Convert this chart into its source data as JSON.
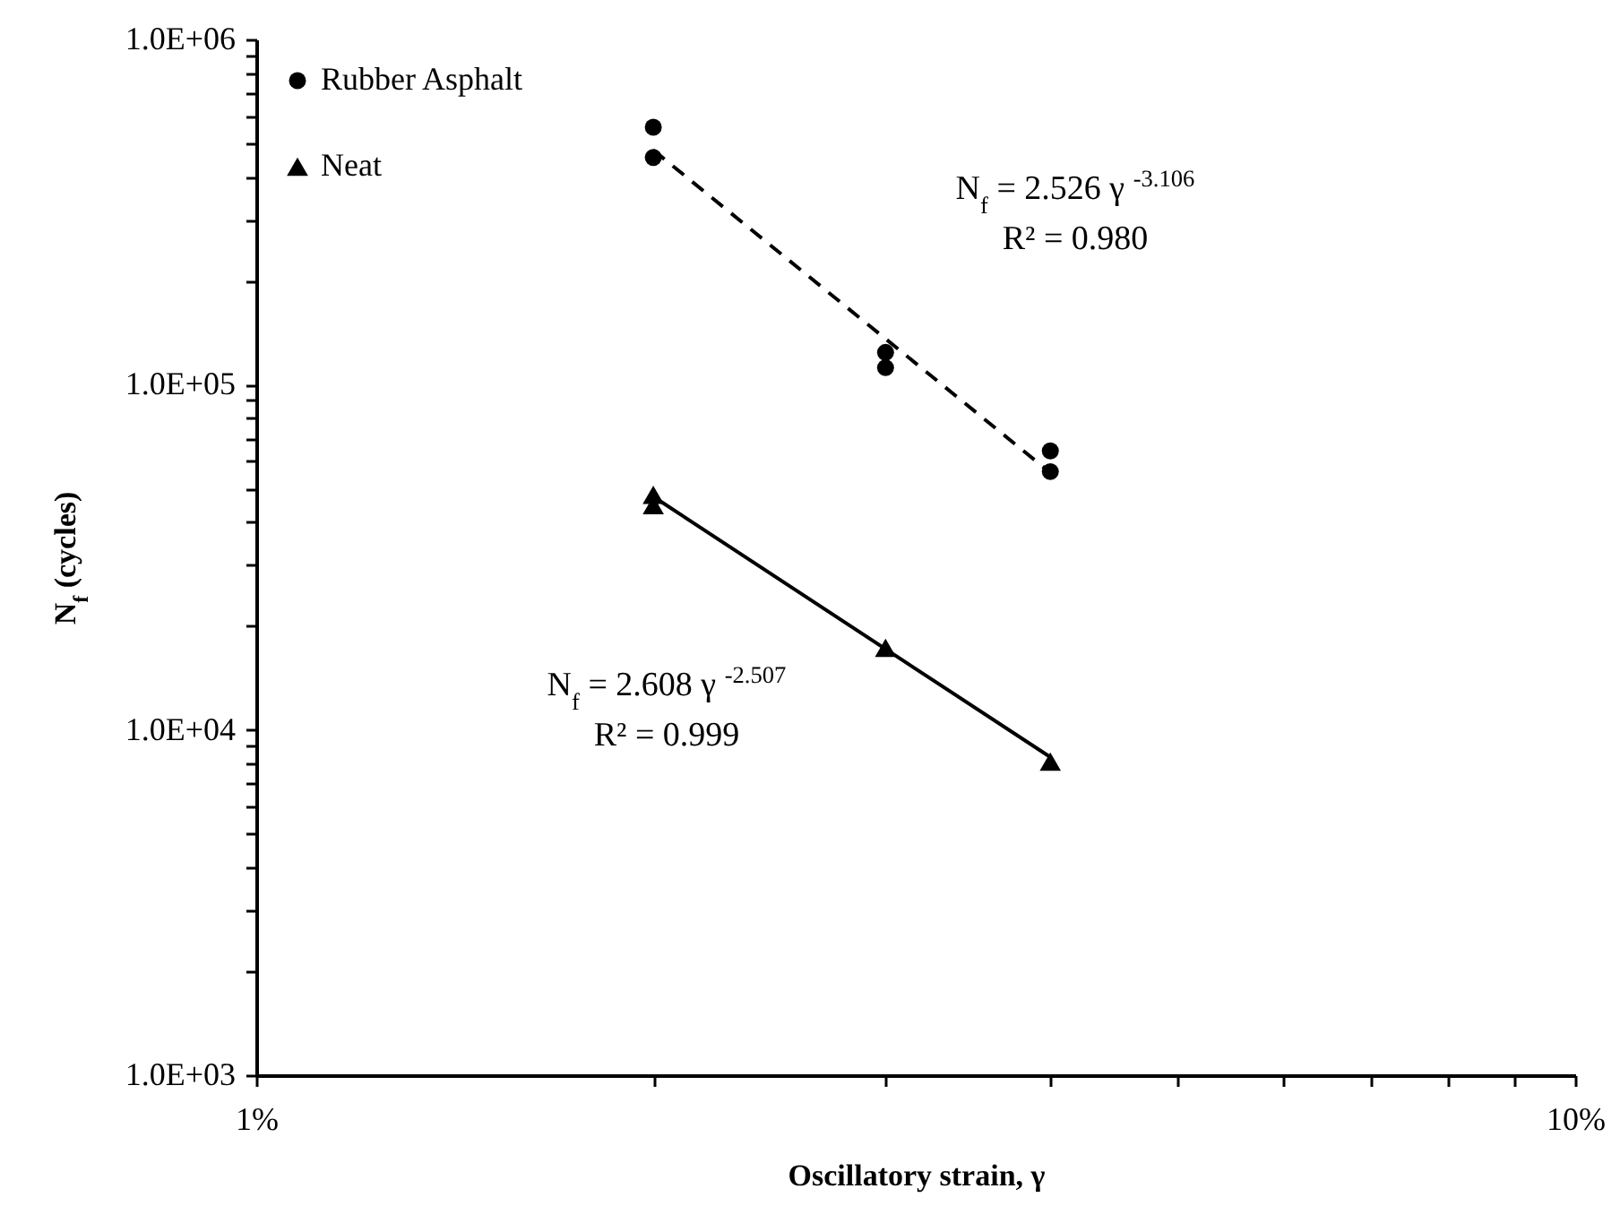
{
  "chart_data": {
    "type": "scatter",
    "xlabel": "Oscillatory strain, γ",
    "ylabel": "N$_{f}$ (cycles)",
    "log": "xy",
    "legend": "top left",
    "xlim": [
      0.01,
      0.1
    ],
    "xticks": [
      {
        "value": 0.01,
        "label": "1%"
      },
      {
        "value": 0.02,
        "label": null
      },
      {
        "value": 0.03,
        "label": null
      },
      {
        "value": 0.04,
        "label": null
      },
      {
        "value": 0.05,
        "label": null
      },
      {
        "value": 0.06,
        "label": null
      },
      {
        "value": 0.07,
        "label": null
      },
      {
        "value": 0.08,
        "label": null
      },
      {
        "value": 0.09,
        "label": null
      },
      {
        "value": 0.1,
        "label": "10%"
      }
    ],
    "ylim": [
      1000,
      1000000
    ],
    "yticks": [
      {
        "value": 1000,
        "label": "1.0E+03"
      },
      {
        "value": 2000,
        "label": null
      },
      {
        "value": 3000,
        "label": null
      },
      {
        "value": 4000,
        "label": null
      },
      {
        "value": 5000,
        "label": null
      },
      {
        "value": 6000,
        "label": null
      },
      {
        "value": 7000,
        "label": null
      },
      {
        "value": 8000,
        "label": null
      },
      {
        "value": 9000,
        "label": null
      },
      {
        "value": 10000,
        "label": "1.0E+04"
      },
      {
        "value": 20000,
        "label": null
      },
      {
        "value": 30000,
        "label": null
      },
      {
        "value": 40000,
        "label": null
      },
      {
        "value": 50000,
        "label": null
      },
      {
        "value": 60000,
        "label": null
      },
      {
        "value": 70000,
        "label": null
      },
      {
        "value": 80000,
        "label": null
      },
      {
        "value": 90000,
        "label": null
      },
      {
        "value": 100000,
        "label": "1.0E+05"
      },
      {
        "value": 200000,
        "label": null
      },
      {
        "value": 300000,
        "label": null
      },
      {
        "value": 400000,
        "label": null
      },
      {
        "value": 500000,
        "label": null
      },
      {
        "value": 600000,
        "label": null
      },
      {
        "value": 700000,
        "label": null
      },
      {
        "value": 800000,
        "label": null
      },
      {
        "value": 900000,
        "label": null
      },
      {
        "value": 1000000,
        "label": "1.0E+06"
      }
    ],
    "series": [
      {
        "name": "Rubber Asphalt",
        "marker": "circle",
        "color": "#000000",
        "x": [
          0.02,
          0.02,
          0.03,
          0.03,
          0.04,
          0.04
        ],
        "values": [
          557000,
          455000,
          124000,
          112000,
          64300,
          56000
        ]
      },
      {
        "name": "Neat",
        "marker": "triangle",
        "color": "#000000",
        "x": [
          0.02,
          0.02,
          0.03,
          0.04
        ],
        "values": [
          48000,
          44800,
          17300,
          8100
        ]
      },
      {
        "type": "line",
        "line_style": "dashed",
        "color": "#000000",
        "x": [
          0.02,
          0.04
        ],
        "values": [
          478000,
          55600
        ]
      },
      {
        "type": "line",
        "line_style": "solid",
        "color": "#000000",
        "x": [
          0.02,
          0.04
        ],
        "values": [
          47400,
          8340
        ]
      }
    ],
    "annotations": [
      "N$_{f}$ = 2.526 γ $^{-3.106}$",
      "R² = 0.980",
      "N$_{f}$ = 2.608 γ $^{-2.507}$",
      "R² = 0.999"
    ]
  }
}
